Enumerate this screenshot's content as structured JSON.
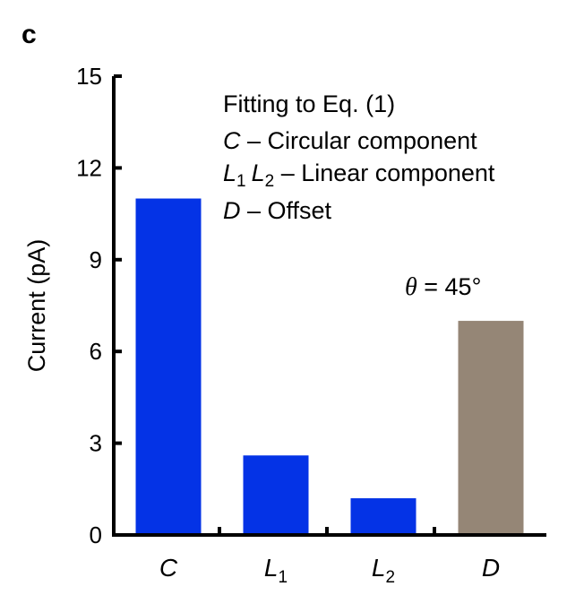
{
  "panel_label": "c",
  "chart_data": {
    "type": "bar",
    "categories": [
      {
        "main": "C",
        "sub": ""
      },
      {
        "main": "L",
        "sub": "1"
      },
      {
        "main": "L",
        "sub": "2"
      },
      {
        "main": "D",
        "sub": ""
      }
    ],
    "values": [
      11.0,
      2.6,
      1.2,
      7.0
    ],
    "colors": [
      "#0433e6",
      "#0433e6",
      "#0433e6",
      "#958676"
    ],
    "ylabel": "Current (pA)",
    "ylim": [
      0,
      15
    ],
    "yticks": [
      "0",
      "3",
      "6",
      "9",
      "12",
      "15"
    ],
    "grid": false,
    "annotations": {
      "fit_title": "Fitting to Eq. (1)",
      "circular_symbol": "C",
      "circular_text": " – Circular component",
      "linear_sym1": "L",
      "linear_sub1": "1",
      "linear_sym2": "L",
      "linear_sub2": "2",
      "linear_text": " – Linear component",
      "offset_symbol": "D",
      "offset_text": " – Offset",
      "theta_symbol": "θ",
      "theta_value": " = 45°"
    }
  }
}
